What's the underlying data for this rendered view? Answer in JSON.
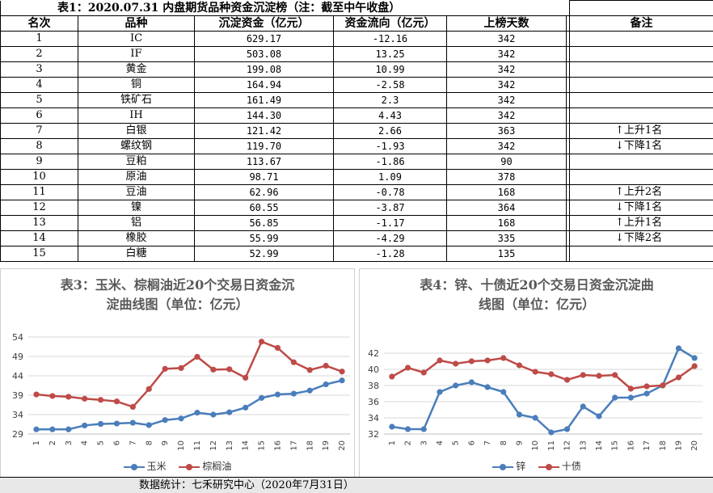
{
  "table": {
    "title": "表1：2020.07.31 内盘期货品种资金沉淀榜（注：截至中午收盘）",
    "headers": [
      "名次",
      "品种",
      "沉淀资金（亿元）",
      "资金流向（亿元）",
      "上榜天数",
      "",
      "备注"
    ],
    "rows": [
      {
        "rank": "1",
        "name": "IC",
        "capital": "629.17",
        "flow": "-12.16",
        "days": "342",
        "note": ""
      },
      {
        "rank": "2",
        "name": "IF",
        "capital": "503.08",
        "flow": "13.25",
        "days": "342",
        "note": ""
      },
      {
        "rank": "3",
        "name": "黄金",
        "capital": "199.08",
        "flow": "10.99",
        "days": "342",
        "note": ""
      },
      {
        "rank": "4",
        "name": "铜",
        "capital": "164.94",
        "flow": "-2.58",
        "days": "342",
        "note": ""
      },
      {
        "rank": "5",
        "name": "铁矿石",
        "capital": "161.49",
        "flow": "2.3",
        "days": "342",
        "note": ""
      },
      {
        "rank": "6",
        "name": "IH",
        "capital": "144.30",
        "flow": "4.43",
        "days": "342",
        "note": ""
      },
      {
        "rank": "7",
        "name": "白银",
        "capital": "121.42",
        "flow": "2.66",
        "days": "363",
        "note": "↑上升1名"
      },
      {
        "rank": "8",
        "name": "螺纹钢",
        "capital": "119.70",
        "flow": "-1.93",
        "days": "342",
        "note": "↓下降1名"
      },
      {
        "rank": "9",
        "name": "豆粕",
        "capital": "113.67",
        "flow": "-1.86",
        "days": "90",
        "note": ""
      },
      {
        "rank": "10",
        "name": "原油",
        "capital": "98.71",
        "flow": "1.09",
        "days": "378",
        "note": ""
      },
      {
        "rank": "11",
        "name": "豆油",
        "capital": "62.96",
        "flow": "-0.78",
        "days": "168",
        "note": "↑上升2名"
      },
      {
        "rank": "12",
        "name": "镍",
        "capital": "60.55",
        "flow": "-3.87",
        "days": "364",
        "note": "↓下降1名"
      },
      {
        "rank": "13",
        "name": "铝",
        "capital": "56.85",
        "flow": "-1.17",
        "days": "168",
        "note": "↑上升1名"
      },
      {
        "rank": "14",
        "name": "橡胶",
        "capital": "55.99",
        "flow": "-4.29",
        "days": "335",
        "note": "↓下降2名"
      },
      {
        "rank": "15",
        "name": "白糖",
        "capital": "52.99",
        "flow": "-1.28",
        "days": "135",
        "note": ""
      }
    ]
  },
  "chart_data": [
    {
      "type": "line",
      "title_line1": "表3：玉米、棕榈油近20个交易日资金沉",
      "title_line2": "淀曲线图（单位：亿元）",
      "x": [
        "1",
        "2",
        "3",
        "4",
        "5",
        "6",
        "7",
        "8",
        "9",
        "10",
        "11",
        "12",
        "13",
        "14",
        "15",
        "16",
        "17",
        "18",
        "19",
        "20"
      ],
      "yticks": [
        "29",
        "34",
        "39",
        "44",
        "49",
        "54"
      ],
      "ylim": [
        29,
        54
      ],
      "series": [
        {
          "name": "玉米",
          "color": "#4a7ebb",
          "values": [
            30.2,
            30.2,
            30.2,
            31.2,
            31.6,
            31.7,
            31.9,
            31.3,
            32.6,
            33.0,
            34.5,
            34.0,
            34.6,
            35.8,
            38.3,
            39.2,
            39.4,
            40.2,
            41.8,
            42.8
          ]
        },
        {
          "name": "棕榈油",
          "color": "#be4b48",
          "values": [
            39.2,
            38.8,
            38.6,
            38.1,
            37.8,
            37.4,
            36.0,
            40.6,
            45.8,
            46.0,
            48.9,
            45.6,
            45.7,
            43.5,
            52.8,
            51.2,
            47.5,
            45.5,
            46.6,
            45.1
          ]
        }
      ]
    },
    {
      "type": "line",
      "title_line1": "表4：锌、十债近20个交易日资金沉淀曲",
      "title_line2": "线图（单位：亿元）",
      "x": [
        "1",
        "2",
        "3",
        "4",
        "5",
        "6",
        "7",
        "8",
        "9",
        "10",
        "11",
        "12",
        "13",
        "14",
        "15",
        "16",
        "17",
        "18",
        "19",
        "20"
      ],
      "yticks": [
        "32",
        "34",
        "36",
        "38",
        "40",
        "42"
      ],
      "ylim": [
        32,
        43
      ],
      "series": [
        {
          "name": "锌",
          "color": "#4a7ebb",
          "values": [
            32.9,
            32.6,
            32.6,
            37.2,
            38.0,
            38.4,
            37.8,
            37.2,
            34.4,
            34.0,
            32.2,
            32.6,
            35.4,
            34.2,
            36.5,
            36.5,
            37.0,
            38.0,
            42.6,
            41.4
          ]
        },
        {
          "name": "十债",
          "color": "#be4b48",
          "values": [
            39.1,
            40.2,
            39.6,
            41.1,
            40.7,
            41.0,
            41.1,
            41.4,
            40.5,
            39.7,
            39.4,
            38.7,
            39.3,
            39.2,
            39.3,
            37.6,
            37.9,
            38.0,
            39.0,
            40.4
          ]
        }
      ]
    }
  ],
  "footer": {
    "text": "数据统计：七禾研究中心（2020年7月31日）"
  }
}
